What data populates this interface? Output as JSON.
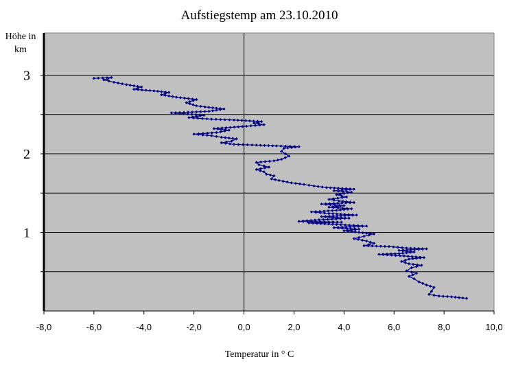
{
  "chart_data": {
    "type": "line",
    "title": "Aufstiegstemp am 23.10.2010",
    "xlabel": "Temperatur in ° C",
    "ylabel": [
      "Höhe in",
      "km"
    ],
    "xlim": [
      -8,
      10
    ],
    "ylim": [
      0,
      3.4
    ],
    "x_ticks": [
      "-8,0",
      "-6,0",
      "-4,0",
      "-2,0",
      "0,0",
      "2,0",
      "4,0",
      "6,0",
      "8,0",
      "10,0"
    ],
    "y_ticks": [
      "1",
      "2",
      "3"
    ],
    "y_tick_values": [
      1,
      2,
      3
    ],
    "grid": "horizontal",
    "plot_background": "#c0c0c0",
    "series_color": "#000080",
    "series": [
      {
        "points": [
          [
            8.9,
            0.16
          ],
          [
            8.3,
            0.18
          ],
          [
            7.8,
            0.19
          ],
          [
            7.4,
            0.21
          ],
          [
            7.5,
            0.25
          ],
          [
            7.6,
            0.3
          ],
          [
            7.3,
            0.33
          ],
          [
            7.0,
            0.37
          ],
          [
            6.8,
            0.41
          ],
          [
            6.6,
            0.44
          ],
          [
            6.9,
            0.48
          ],
          [
            6.5,
            0.51
          ],
          [
            6.7,
            0.55
          ],
          [
            7.1,
            0.58
          ],
          [
            6.6,
            0.6
          ],
          [
            6.3,
            0.63
          ],
          [
            6.6,
            0.66
          ],
          [
            7.2,
            0.68
          ],
          [
            6.4,
            0.7
          ],
          [
            5.4,
            0.72
          ],
          [
            6.2,
            0.73
          ],
          [
            6.8,
            0.75
          ],
          [
            6.2,
            0.77
          ],
          [
            7.3,
            0.79
          ],
          [
            6.5,
            0.8
          ],
          [
            5.8,
            0.82
          ],
          [
            4.8,
            0.83
          ],
          [
            5.2,
            0.86
          ],
          [
            4.9,
            0.89
          ],
          [
            4.4,
            0.92
          ],
          [
            4.8,
            0.95
          ],
          [
            5.2,
            0.98
          ],
          [
            4.6,
            1.0
          ],
          [
            4.0,
            1.02
          ],
          [
            4.6,
            1.04
          ],
          [
            3.6,
            1.06
          ],
          [
            4.9,
            1.08
          ],
          [
            3.7,
            1.1
          ],
          [
            2.6,
            1.12
          ],
          [
            3.9,
            1.13
          ],
          [
            2.2,
            1.14
          ],
          [
            3.0,
            1.16
          ],
          [
            4.2,
            1.18
          ],
          [
            3.1,
            1.2
          ],
          [
            4.5,
            1.22
          ],
          [
            3.4,
            1.24
          ],
          [
            2.7,
            1.26
          ],
          [
            3.7,
            1.28
          ],
          [
            4.3,
            1.3
          ],
          [
            3.4,
            1.32
          ],
          [
            4.0,
            1.34
          ],
          [
            3.1,
            1.36
          ],
          [
            4.4,
            1.38
          ],
          [
            3.8,
            1.4
          ],
          [
            3.4,
            1.42
          ],
          [
            4.1,
            1.45
          ],
          [
            3.7,
            1.48
          ],
          [
            4.3,
            1.51
          ],
          [
            3.6,
            1.53
          ],
          [
            4.4,
            1.55
          ],
          [
            3.3,
            1.57
          ],
          [
            2.8,
            1.59
          ],
          [
            2.4,
            1.61
          ],
          [
            1.9,
            1.63
          ],
          [
            1.4,
            1.66
          ],
          [
            1.1,
            1.68
          ],
          [
            1.2,
            1.72
          ],
          [
            0.9,
            1.74
          ],
          [
            0.8,
            1.77
          ],
          [
            0.5,
            1.8
          ],
          [
            1.0,
            1.83
          ],
          [
            0.6,
            1.86
          ],
          [
            0.5,
            1.89
          ],
          [
            1.2,
            1.91
          ],
          [
            1.5,
            1.93
          ],
          [
            1.8,
            1.97
          ],
          [
            1.5,
            2.03
          ],
          [
            1.6,
            2.07
          ],
          [
            2.2,
            2.09
          ],
          [
            1.3,
            2.1
          ],
          [
            0.5,
            2.11
          ],
          [
            -0.4,
            2.12
          ],
          [
            -0.9,
            2.14
          ],
          [
            -0.5,
            2.16
          ],
          [
            -0.3,
            2.19
          ],
          [
            -0.9,
            2.21
          ],
          [
            -1.3,
            2.23
          ],
          [
            -2.0,
            2.25
          ],
          [
            -1.1,
            2.27
          ],
          [
            -0.6,
            2.3
          ],
          [
            -1.2,
            2.32
          ],
          [
            0.1,
            2.35
          ],
          [
            0.8,
            2.37
          ],
          [
            0.4,
            2.39
          ],
          [
            0.7,
            2.41
          ],
          [
            -0.4,
            2.43
          ],
          [
            -1.3,
            2.44
          ],
          [
            -2.2,
            2.46
          ],
          [
            -1.6,
            2.49
          ],
          [
            -2.9,
            2.52
          ],
          [
            -1.4,
            2.54
          ],
          [
            -0.8,
            2.57
          ],
          [
            -1.4,
            2.59
          ],
          [
            -1.9,
            2.61
          ],
          [
            -2.3,
            2.65
          ],
          [
            -1.9,
            2.69
          ],
          [
            -2.7,
            2.72
          ],
          [
            -3.3,
            2.75
          ],
          [
            -3.0,
            2.78
          ],
          [
            -3.6,
            2.8
          ],
          [
            -4.4,
            2.82
          ],
          [
            -4.1,
            2.85
          ],
          [
            -4.7,
            2.88
          ],
          [
            -5.2,
            2.91
          ],
          [
            -5.6,
            2.94
          ],
          [
            -5.3,
            2.97
          ],
          [
            -6.0,
            2.96
          ]
        ]
      }
    ]
  }
}
